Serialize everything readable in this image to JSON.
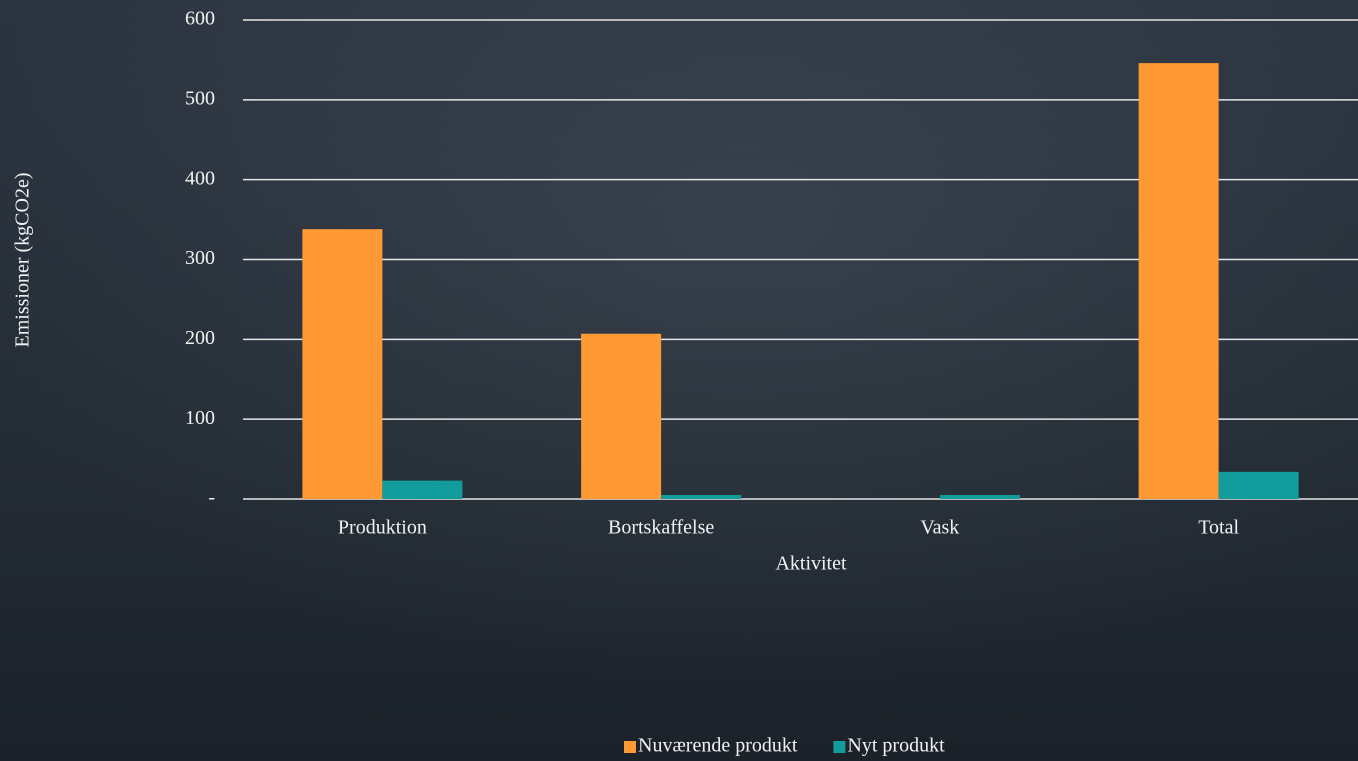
{
  "chart_data": {
    "type": "bar",
    "x_label": "Aktivitet",
    "y_label": "Emissioner (kgCO2e)",
    "categories": [
      "Produktion",
      "Bortskaffelse",
      "Vask",
      "Total"
    ],
    "series": [
      {
        "name": "Nuværende produkt",
        "color": "#ff9933",
        "values": [
          338,
          207,
          0,
          546
        ]
      },
      {
        "name": "Nyt produkt",
        "color": "#139c9c",
        "values": [
          23,
          5,
          5,
          34
        ]
      }
    ],
    "ylim": [
      0,
      600
    ],
    "yticks": [
      {
        "value": 0,
        "label": "-"
      },
      100,
      200,
      300,
      400,
      500,
      600
    ],
    "grid": true,
    "legend": "bottom"
  }
}
